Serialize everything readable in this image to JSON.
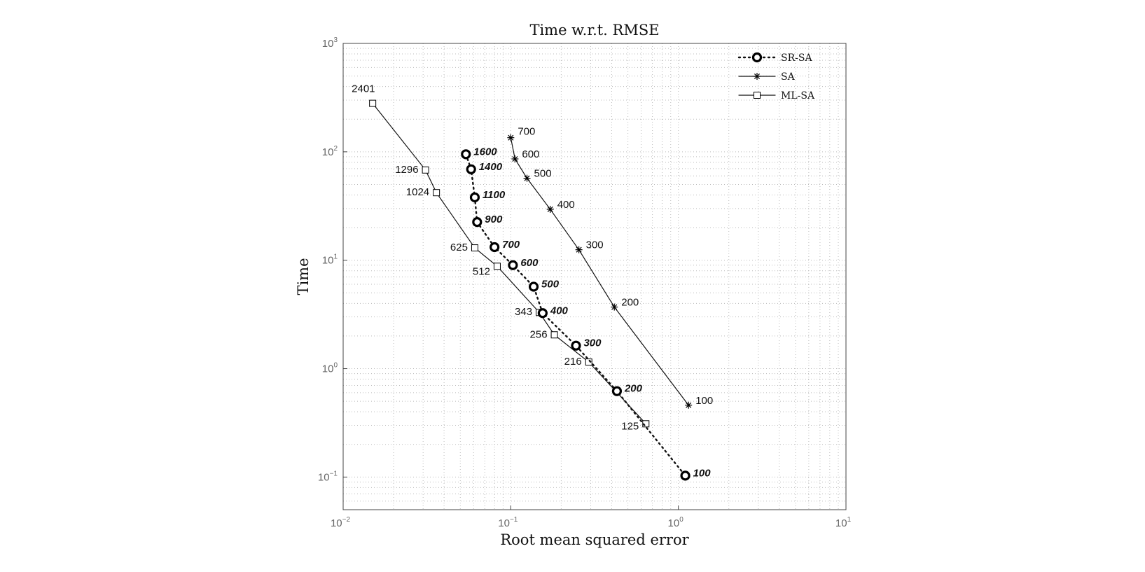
{
  "chart_data": {
    "type": "scatter",
    "title": "Time w.r.t. RMSE",
    "xlabel": "Root mean squared error",
    "ylabel": "Time",
    "xscale": "log",
    "yscale": "log",
    "xlim": [
      0.01,
      10
    ],
    "ylim": [
      0.05,
      1000
    ],
    "grid": true,
    "legend_position": "top-right",
    "x_ticks": [
      {
        "base": "10",
        "exp": "−2"
      },
      {
        "base": "10",
        "exp": "−1"
      },
      {
        "base": "10",
        "exp": "0"
      },
      {
        "base": "10",
        "exp": "1"
      }
    ],
    "y_ticks": [
      {
        "base": "10",
        "exp": "−1"
      },
      {
        "base": "10",
        "exp": "0"
      },
      {
        "base": "10",
        "exp": "1"
      },
      {
        "base": "10",
        "exp": "2"
      },
      {
        "base": "10",
        "exp": "3"
      }
    ],
    "series": [
      {
        "name": "SR-SA",
        "marker": "circle",
        "line": "dotted",
        "label_style": "bold-italic",
        "points": [
          {
            "x": 0.054,
            "y": 95,
            "label": "1600"
          },
          {
            "x": 0.058,
            "y": 69,
            "label": "1400"
          },
          {
            "x": 0.061,
            "y": 38,
            "label": "1100"
          },
          {
            "x": 0.063,
            "y": 22.5,
            "label": "900"
          },
          {
            "x": 0.08,
            "y": 13.2,
            "label": "700"
          },
          {
            "x": 0.103,
            "y": 9.0,
            "label": "600"
          },
          {
            "x": 0.137,
            "y": 5.7,
            "label": "500"
          },
          {
            "x": 0.155,
            "y": 3.25,
            "label": "400"
          },
          {
            "x": 0.245,
            "y": 1.63,
            "label": "300"
          },
          {
            "x": 0.43,
            "y": 0.62,
            "label": "200"
          },
          {
            "x": 1.1,
            "y": 0.103,
            "label": "100"
          }
        ]
      },
      {
        "name": "SA",
        "marker": "asterisk",
        "line": "solid",
        "label_style": "normal",
        "points": [
          {
            "x": 0.1,
            "y": 135,
            "label": "700"
          },
          {
            "x": 0.106,
            "y": 86,
            "label": "600"
          },
          {
            "x": 0.125,
            "y": 57,
            "label": "500"
          },
          {
            "x": 0.172,
            "y": 29.5,
            "label": "400"
          },
          {
            "x": 0.255,
            "y": 12.5,
            "label": "300"
          },
          {
            "x": 0.415,
            "y": 3.7,
            "label": "200"
          },
          {
            "x": 1.15,
            "y": 0.46,
            "label": "100"
          }
        ]
      },
      {
        "name": "ML-SA",
        "marker": "square",
        "line": "solid",
        "label_style": "normal",
        "points": [
          {
            "x": 0.015,
            "y": 280,
            "label": "2401"
          },
          {
            "x": 0.031,
            "y": 68,
            "label": "1296"
          },
          {
            "x": 0.036,
            "y": 42,
            "label": "1024"
          },
          {
            "x": 0.061,
            "y": 13,
            "label": "625"
          },
          {
            "x": 0.083,
            "y": 8.8,
            "label": "512"
          },
          {
            "x": 0.148,
            "y": 3.3,
            "label": "343"
          },
          {
            "x": 0.182,
            "y": 2.05,
            "label": "256"
          },
          {
            "x": 0.292,
            "y": 1.15,
            "label": "216"
          },
          {
            "x": 0.64,
            "y": 0.31,
            "label": "125"
          }
        ]
      }
    ]
  }
}
